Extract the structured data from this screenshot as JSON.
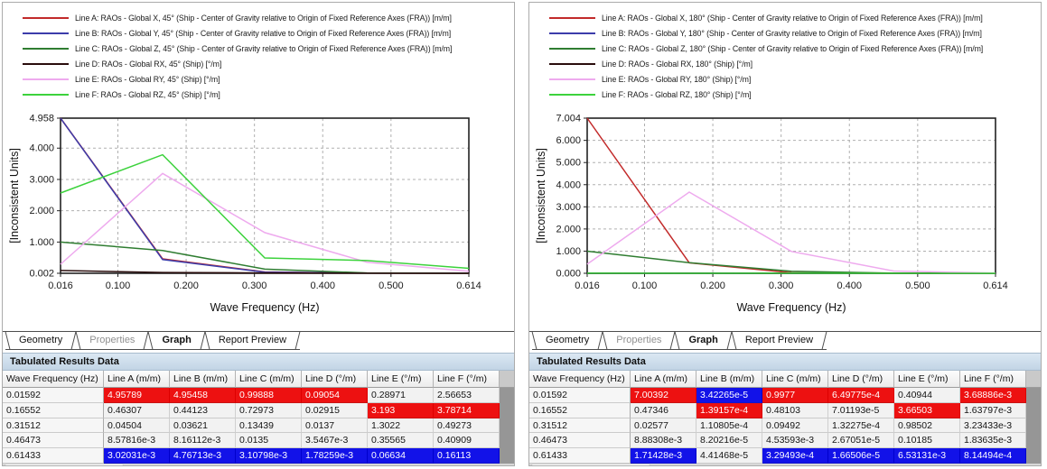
{
  "chart_data": [
    {
      "type": "line",
      "xlabel": "Wave Frequency (Hz)",
      "ylabel": "[Inconsistent Units]",
      "xlim": [
        0.016,
        0.614
      ],
      "ylim": [
        0.002,
        4.958
      ],
      "x": [
        0.01592,
        0.16552,
        0.31512,
        0.46473,
        0.61433
      ],
      "x_ticks": [
        {
          "v": 0.016,
          "label": "0.016"
        },
        {
          "v": 0.1,
          "label": "0.100"
        },
        {
          "v": 0.2,
          "label": "0.200"
        },
        {
          "v": 0.3,
          "label": "0.300"
        },
        {
          "v": 0.4,
          "label": "0.400"
        },
        {
          "v": 0.5,
          "label": "0.500"
        },
        {
          "v": 0.614,
          "label": "0.614"
        }
      ],
      "y_ticks": [
        {
          "v": 4.958,
          "label": "4.958"
        },
        {
          "v": 4,
          "label": "4.000"
        },
        {
          "v": 3,
          "label": "3.000"
        },
        {
          "v": 2,
          "label": "2.000"
        },
        {
          "v": 1,
          "label": "1.000"
        },
        {
          "v": 0.002,
          "label": "0.002"
        }
      ],
      "grid_x": [
        0.1,
        0.2,
        0.3,
        0.4,
        0.5
      ],
      "grid_y": [
        1,
        2,
        3,
        4
      ],
      "legend_position": "top-left",
      "grid": true,
      "series": [
        {
          "name": "Line A: RAOs - Global X, 45° (Ship - Center of Gravity relative to Origin of Fixed Reference Axes (FRA)) [m/m]",
          "color": "#c22a2a",
          "values": [
            4.95789,
            0.46307,
            0.04504,
            0.00857816,
            0.00302031
          ]
        },
        {
          "name": "Line B: RAOs - Global Y, 45° (Ship - Center of Gravity relative to Origin of Fixed Reference Axes (FRA)) [m/m]",
          "color": "#3c3caa",
          "values": [
            4.95458,
            0.44123,
            0.03621,
            0.00816112,
            0.00476713
          ]
        },
        {
          "name": "Line C: RAOs - Global Z, 45° (Ship - Center of Gravity relative to Origin of Fixed Reference Axes (FRA)) [m/m]",
          "color": "#2f7d31",
          "values": [
            0.99888,
            0.72973,
            0.13439,
            0.0135,
            0.00310798
          ]
        },
        {
          "name": "Line D: RAOs - Global RX, 45° (Ship) [°/m]",
          "color": "#2a0d0d",
          "values": [
            0.09054,
            0.02915,
            0.0137,
            0.0035467,
            0.00178259
          ]
        },
        {
          "name": "Line E: RAOs - Global RY, 45° (Ship) [°/m]",
          "color": "#eeaaee",
          "values": [
            0.28971,
            3.193,
            1.3022,
            0.35565,
            0.06634
          ]
        },
        {
          "name": "Line F: RAOs - Global RZ, 45° (Ship) [°/m]",
          "color": "#3cd23c",
          "values": [
            2.56653,
            3.78714,
            0.49273,
            0.40909,
            0.16113
          ]
        }
      ]
    },
    {
      "type": "line",
      "xlabel": "Wave Frequency (Hz)",
      "ylabel": "[Inconsistent Units]",
      "xlim": [
        0.016,
        0.614
      ],
      "ylim": [
        0,
        7.004
      ],
      "x": [
        0.01592,
        0.16552,
        0.31512,
        0.46473,
        0.61433
      ],
      "x_ticks": [
        {
          "v": 0.016,
          "label": "0.016"
        },
        {
          "v": 0.1,
          "label": "0.100"
        },
        {
          "v": 0.2,
          "label": "0.200"
        },
        {
          "v": 0.3,
          "label": "0.300"
        },
        {
          "v": 0.4,
          "label": "0.400"
        },
        {
          "v": 0.5,
          "label": "0.500"
        },
        {
          "v": 0.614,
          "label": "0.614"
        }
      ],
      "y_ticks": [
        {
          "v": 7.004,
          "label": "7.004"
        },
        {
          "v": 6,
          "label": "6.000"
        },
        {
          "v": 5,
          "label": "5.000"
        },
        {
          "v": 4,
          "label": "4.000"
        },
        {
          "v": 3,
          "label": "3.000"
        },
        {
          "v": 2,
          "label": "2.000"
        },
        {
          "v": 1,
          "label": "1.000"
        },
        {
          "v": 0,
          "label": "0.000"
        }
      ],
      "grid_x": [
        0.1,
        0.2,
        0.3,
        0.4,
        0.5
      ],
      "grid_y": [
        1,
        2,
        3,
        4,
        5,
        6
      ],
      "legend_position": "top-left",
      "grid": true,
      "series": [
        {
          "name": "Line A: RAOs - Global X, 180° (Ship - Center of Gravity relative to Origin of Fixed Reference Axes (FRA)) [m/m]",
          "color": "#c22a2a",
          "values": [
            7.00392,
            0.47346,
            0.02577,
            0.00888308,
            0.00171428
          ]
        },
        {
          "name": "Line B: RAOs - Global Y, 180° (Ship - Center of Gravity relative to Origin of Fixed Reference Axes (FRA)) [m/m]",
          "color": "#3c3caa",
          "values": [
            3.42265e-05,
            0.000139157,
            0.000110805,
            8.20216e-05,
            4.41468e-05
          ]
        },
        {
          "name": "Line C: RAOs - Global Z, 180° (Ship - Center of Gravity relative to Origin of Fixed Reference Axes (FRA)) [m/m]",
          "color": "#2f7d31",
          "values": [
            0.9977,
            0.48103,
            0.09492,
            0.00453593,
            0.000329493
          ]
        },
        {
          "name": "Line D: RAOs - Global RX, 180° (Ship) [°/m]",
          "color": "#2a0d0d",
          "values": [
            0.000649775,
            7.01193e-05,
            0.000132275,
            2.67051e-05,
            1.66506e-05
          ]
        },
        {
          "name": "Line E: RAOs - Global RY, 180° (Ship) [°/m]",
          "color": "#eeaaee",
          "values": [
            0.40944,
            3.66503,
            0.98502,
            0.10185,
            0.00653131
          ]
        },
        {
          "name": "Line F: RAOs - Global RZ, 180° (Ship) [°/m]",
          "color": "#3cd23c",
          "values": [
            0.00368886,
            0.00163797,
            0.00323433,
            0.00183635,
            0.000814494
          ]
        }
      ]
    }
  ],
  "panels": {
    "left": {
      "tabs": [
        {
          "label": "Geometry",
          "state": "normal"
        },
        {
          "label": "Properties",
          "state": "disabled"
        },
        {
          "label": "Graph",
          "state": "active"
        },
        {
          "label": "Report Preview",
          "state": "normal"
        }
      ],
      "table_title": "Tabulated Results Data",
      "table": {
        "headers": [
          "Wave Frequency (Hz)",
          "Line A (m/m)",
          "Line B (m/m)",
          "Line C (m/m)",
          "Line D (°/m)",
          "Line E (°/m)",
          "Line F (°/m)"
        ],
        "rows": [
          {
            "freq": "0.01592",
            "cells": [
              {
                "v": "4.95789",
                "h": "max"
              },
              {
                "v": "4.95458",
                "h": "max"
              },
              {
                "v": "0.99888",
                "h": "max"
              },
              {
                "v": "0.09054",
                "h": "max"
              },
              {
                "v": "0.28971",
                "h": ""
              },
              {
                "v": "2.56653",
                "h": ""
              }
            ]
          },
          {
            "freq": "0.16552",
            "cells": [
              {
                "v": "0.46307",
                "h": ""
              },
              {
                "v": "0.44123",
                "h": ""
              },
              {
                "v": "0.72973",
                "h": ""
              },
              {
                "v": "0.02915",
                "h": ""
              },
              {
                "v": "3.193",
                "h": "max"
              },
              {
                "v": "3.78714",
                "h": "max"
              }
            ]
          },
          {
            "freq": "0.31512",
            "cells": [
              {
                "v": "0.04504",
                "h": ""
              },
              {
                "v": "0.03621",
                "h": ""
              },
              {
                "v": "0.13439",
                "h": ""
              },
              {
                "v": "0.0137",
                "h": ""
              },
              {
                "v": "1.3022",
                "h": ""
              },
              {
                "v": "0.49273",
                "h": ""
              }
            ]
          },
          {
            "freq": "0.46473",
            "cells": [
              {
                "v": "8.57816e-3",
                "h": ""
              },
              {
                "v": "8.16112e-3",
                "h": ""
              },
              {
                "v": "0.0135",
                "h": ""
              },
              {
                "v": "3.5467e-3",
                "h": ""
              },
              {
                "v": "0.35565",
                "h": ""
              },
              {
                "v": "0.40909",
                "h": ""
              }
            ]
          },
          {
            "freq": "0.61433",
            "cells": [
              {
                "v": "3.02031e-3",
                "h": "min"
              },
              {
                "v": "4.76713e-3",
                "h": "min"
              },
              {
                "v": "3.10798e-3",
                "h": "min"
              },
              {
                "v": "1.78259e-3",
                "h": "min"
              },
              {
                "v": "0.06634",
                "h": "min"
              },
              {
                "v": "0.16113",
                "h": "min"
              }
            ]
          }
        ]
      }
    },
    "right": {
      "tabs": [
        {
          "label": "Geometry",
          "state": "normal"
        },
        {
          "label": "Properties",
          "state": "disabled"
        },
        {
          "label": "Graph",
          "state": "active"
        },
        {
          "label": "Report Preview",
          "state": "normal"
        }
      ],
      "table_title": "Tabulated Results Data",
      "table": {
        "headers": [
          "Wave Frequency (Hz)",
          "Line A (m/m)",
          "Line B (m/m)",
          "Line C (m/m)",
          "Line D (°/m)",
          "Line E (°/m)",
          "Line F (°/m)"
        ],
        "rows": [
          {
            "freq": "0.01592",
            "cells": [
              {
                "v": "7.00392",
                "h": "max"
              },
              {
                "v": "3.42265e-5",
                "h": "min"
              },
              {
                "v": "0.9977",
                "h": "max"
              },
              {
                "v": "6.49775e-4",
                "h": "max"
              },
              {
                "v": "0.40944",
                "h": ""
              },
              {
                "v": "3.68886e-3",
                "h": "max"
              }
            ]
          },
          {
            "freq": "0.16552",
            "cells": [
              {
                "v": "0.47346",
                "h": ""
              },
              {
                "v": "1.39157e-4",
                "h": "max"
              },
              {
                "v": "0.48103",
                "h": ""
              },
              {
                "v": "7.01193e-5",
                "h": ""
              },
              {
                "v": "3.66503",
                "h": "max"
              },
              {
                "v": "1.63797e-3",
                "h": ""
              }
            ]
          },
          {
            "freq": "0.31512",
            "cells": [
              {
                "v": "0.02577",
                "h": ""
              },
              {
                "v": "1.10805e-4",
                "h": ""
              },
              {
                "v": "0.09492",
                "h": ""
              },
              {
                "v": "1.32275e-4",
                "h": ""
              },
              {
                "v": "0.98502",
                "h": ""
              },
              {
                "v": "3.23433e-3",
                "h": ""
              }
            ]
          },
          {
            "freq": "0.46473",
            "cells": [
              {
                "v": "8.88308e-3",
                "h": ""
              },
              {
                "v": "8.20216e-5",
                "h": ""
              },
              {
                "v": "4.53593e-3",
                "h": ""
              },
              {
                "v": "2.67051e-5",
                "h": ""
              },
              {
                "v": "0.10185",
                "h": ""
              },
              {
                "v": "1.83635e-3",
                "h": ""
              }
            ]
          },
          {
            "freq": "0.61433",
            "cells": [
              {
                "v": "1.71428e-3",
                "h": "min"
              },
              {
                "v": "4.41468e-5",
                "h": ""
              },
              {
                "v": "3.29493e-4",
                "h": "min"
              },
              {
                "v": "1.66506e-5",
                "h": "min"
              },
              {
                "v": "6.53131e-3",
                "h": "min"
              },
              {
                "v": "8.14494e-4",
                "h": "min"
              }
            ]
          }
        ]
      }
    }
  }
}
